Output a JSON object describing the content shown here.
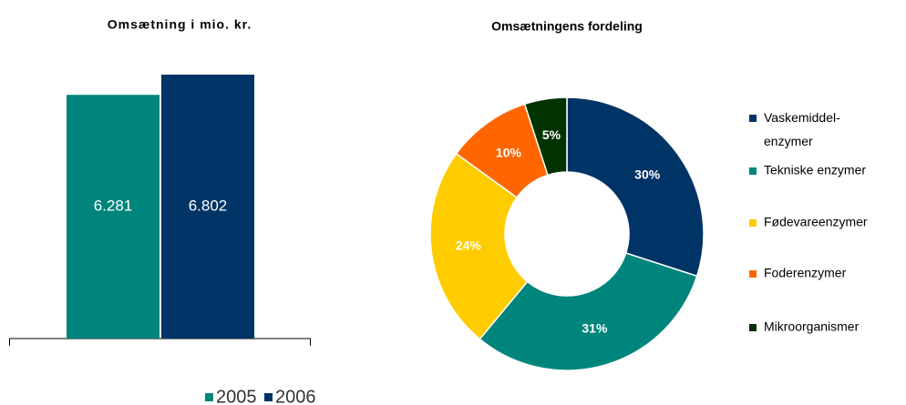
{
  "chart_data": [
    {
      "type": "bar",
      "title": "Omsætning i mio. kr.",
      "series": [
        {
          "name": "2005",
          "color": "#00857c",
          "values": [
            6281
          ],
          "value_labels": [
            "6.281"
          ]
        },
        {
          "name": "2006",
          "color": "#003366",
          "values": [
            6802
          ],
          "value_labels": [
            "6.802"
          ]
        }
      ]
    },
    {
      "type": "donut",
      "title": "Omsætningens fordeling",
      "categories": [
        "Vaskemiddel-\nenzymer",
        "Tekniske enzymer",
        "Fødevareenzymer",
        "Foderenzymer",
        "Mikroorganismer"
      ],
      "values": [
        30,
        31,
        24,
        10,
        5
      ],
      "value_labels": [
        "30%",
        "31%",
        "24%",
        "10%",
        "5%"
      ],
      "colors": [
        "#003366",
        "#00857c",
        "#ffcc00",
        "#ff6600",
        "#003300"
      ]
    }
  ]
}
